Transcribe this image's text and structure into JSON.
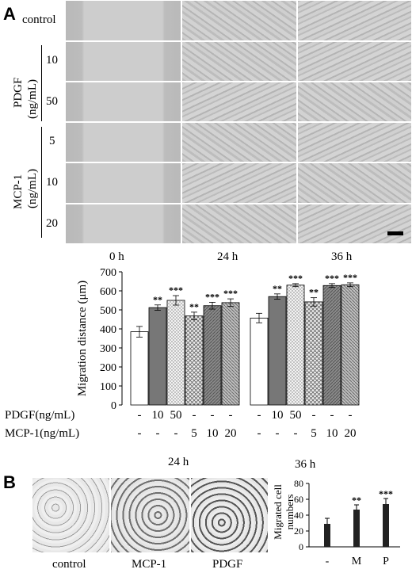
{
  "panel_a": {
    "letter": "A",
    "row_control": "control",
    "group_pdgf": "PDGF",
    "group_pdgf_unit": "(ng/mL)",
    "group_mcp": "MCP-1",
    "group_mcp_unit": "(ng/mL)",
    "row_levels": [
      "10",
      "50",
      "5",
      "10",
      "20"
    ],
    "time_labels": [
      "0 h",
      "24 h",
      "36 h"
    ]
  },
  "panel_b": {
    "letter": "B",
    "image_labels": [
      "control",
      "MCP-1",
      "PDGF"
    ]
  },
  "chart_data": [
    {
      "type": "bar",
      "ylabel": "Migration distance (μm)",
      "ylim": [
        0,
        700
      ],
      "yticks": [
        0,
        100,
        200,
        300,
        400,
        500,
        600,
        700
      ],
      "groups": [
        "24 h",
        "36 h"
      ],
      "categories": [
        "control",
        "PDGF 10",
        "PDGF 50",
        "MCP-1 5",
        "MCP-1 10",
        "MCP-1 20"
      ],
      "series": [
        {
          "values": [
            385,
            512,
            550,
            468,
            522,
            538
          ],
          "errors": [
            28,
            14,
            25,
            20,
            18,
            20
          ],
          "sig": [
            "",
            "**",
            "***",
            "**",
            "***",
            "***"
          ]
        },
        {
          "values": [
            457,
            570,
            630,
            542,
            628,
            632
          ],
          "errors": [
            25,
            14,
            8,
            22,
            10,
            10
          ],
          "sig": [
            "",
            "**",
            "***",
            "**",
            "***",
            "***"
          ]
        }
      ],
      "table": {
        "row1_label": "PDGF(ng/mL)",
        "row1": [
          "-",
          "10",
          "50",
          "-",
          "-",
          "-"
        ],
        "row2_label": "MCP-1(ng/mL)",
        "row2": [
          "-",
          "-",
          "-",
          "5",
          "10",
          "20"
        ]
      }
    },
    {
      "type": "bar",
      "ylabel": "Migrated cell numbers",
      "ylim": [
        0,
        80
      ],
      "yticks": [
        0,
        20,
        40,
        60,
        80
      ],
      "categories": [
        "-",
        "M",
        "P"
      ],
      "values": [
        29,
        47,
        54
      ],
      "errors": [
        7,
        6,
        7
      ],
      "sig": [
        "",
        "**",
        "***"
      ]
    }
  ]
}
